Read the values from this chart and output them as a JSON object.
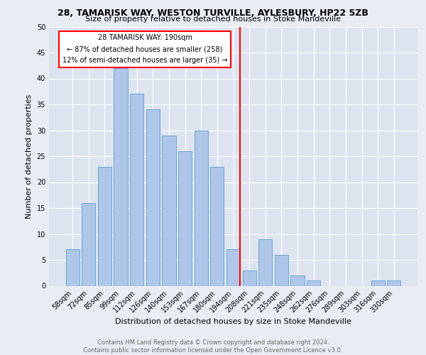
{
  "title1": "28, TAMARISK WAY, WESTON TURVILLE, AYLESBURY, HP22 5ZB",
  "title2": "Size of property relative to detached houses in Stoke Mandeville",
  "xlabel": "Distribution of detached houses by size in Stoke Mandeville",
  "ylabel": "Number of detached properties",
  "footer": "Contains HM Land Registry data © Crown copyright and database right 2024.\nContains public sector information licensed under the Open Government Licence v3.0.",
  "categories": [
    "58sqm",
    "72sqm",
    "85sqm",
    "99sqm",
    "112sqm",
    "126sqm",
    "140sqm",
    "153sqm",
    "167sqm",
    "180sqm",
    "194sqm",
    "208sqm",
    "221sqm",
    "235sqm",
    "248sqm",
    "262sqm",
    "276sqm",
    "289sqm",
    "303sqm",
    "316sqm",
    "330sqm"
  ],
  "values": [
    7,
    16,
    23,
    42,
    37,
    34,
    29,
    26,
    30,
    23,
    7,
    3,
    9,
    6,
    2,
    1,
    0,
    0,
    0,
    1,
    1
  ],
  "bar_color": "#aec6e8",
  "bar_edge_color": "#5a9fd4",
  "vline_color": "red",
  "annotation_title": "28 TAMARISK WAY: 190sqm",
  "annotation_line1": "← 87% of detached houses are smaller (258)",
  "annotation_line2": "12% of semi-detached houses are larger (35) →",
  "ylim": [
    0,
    50
  ],
  "yticks": [
    0,
    5,
    10,
    15,
    20,
    25,
    30,
    35,
    40,
    45,
    50
  ],
  "background_color": "#e8edf4",
  "plot_bg_color": "#dde4ef",
  "title1_fontsize": 9,
  "title2_fontsize": 8,
  "ylabel_fontsize": 8,
  "xlabel_fontsize": 8,
  "tick_fontsize": 7,
  "footer_fontsize": 6
}
